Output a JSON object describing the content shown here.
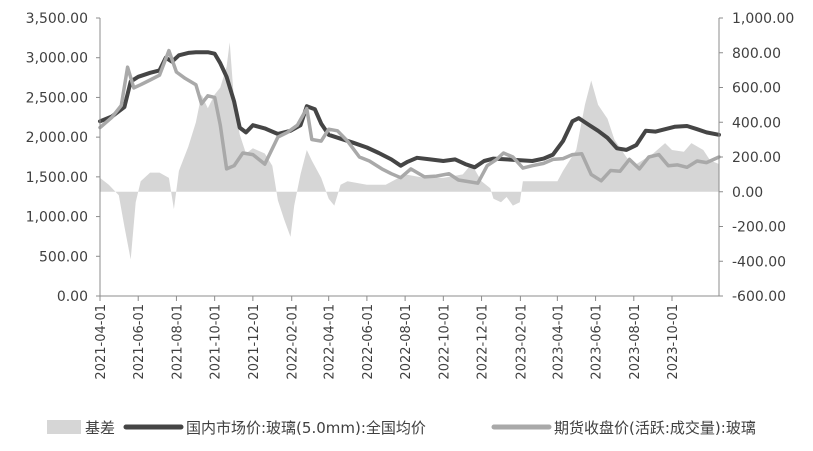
{
  "chart_data": {
    "type": "line",
    "title": "",
    "xlabel": "",
    "ylabel_left": "",
    "ylabel_right": "",
    "left_axis": {
      "min": 0,
      "max": 3500,
      "step": 500,
      "tick_labels": [
        "0.00",
        "500.00",
        "1,000.00",
        "1,500.00",
        "2,000.00",
        "2,500.00",
        "3,000.00",
        "3,500.00"
      ]
    },
    "right_axis": {
      "min": -600,
      "max": 1000,
      "step": 200,
      "tick_labels": [
        "-600.00",
        "-400.00",
        "-200.00",
        "0.00",
        "200.00",
        "400.00",
        "600.00",
        "800.00",
        "1,000.00"
      ]
    },
    "x_axis": {
      "start": "2021-04-01",
      "end": "2023-12-15",
      "tick_labels": [
        "2021-04-01",
        "2021-06-01",
        "2021-08-01",
        "2021-10-01",
        "2021-12-01",
        "2022-02-01",
        "2022-04-01",
        "2022-06-01",
        "2022-08-01",
        "2022-10-01",
        "2022-12-01",
        "2023-02-01",
        "2023-04-01",
        "2023-06-01",
        "2023-08-01",
        "2023-10-01"
      ]
    },
    "grid": false,
    "legend_position": "bottom",
    "series": [
      {
        "name": "基差",
        "axis": "right",
        "render": "area",
        "color": "#d6d6d6",
        "points": [
          [
            "2021-04-01",
            80
          ],
          [
            "2021-04-15",
            40
          ],
          [
            "2021-05-01",
            -20
          ],
          [
            "2021-05-10",
            -200
          ],
          [
            "2021-05-20",
            -390
          ],
          [
            "2021-05-28",
            -60
          ],
          [
            "2021-06-05",
            60
          ],
          [
            "2021-06-20",
            110
          ],
          [
            "2021-07-05",
            110
          ],
          [
            "2021-07-20",
            80
          ],
          [
            "2021-07-28",
            -100
          ],
          [
            "2021-08-05",
            120
          ],
          [
            "2021-08-20",
            260
          ],
          [
            "2021-09-01",
            400
          ],
          [
            "2021-09-10",
            560
          ],
          [
            "2021-09-20",
            480
          ],
          [
            "2021-10-01",
            560
          ],
          [
            "2021-10-10",
            600
          ],
          [
            "2021-10-20",
            720
          ],
          [
            "2021-10-25",
            860
          ],
          [
            "2021-11-01",
            520
          ],
          [
            "2021-11-10",
            330
          ],
          [
            "2021-11-20",
            220
          ],
          [
            "2021-12-01",
            250
          ],
          [
            "2021-12-20",
            220
          ],
          [
            "2022-01-01",
            150
          ],
          [
            "2022-01-10",
            -50
          ],
          [
            "2022-01-20",
            -160
          ],
          [
            "2022-01-30",
            -260
          ],
          [
            "2022-02-05",
            -80
          ],
          [
            "2022-02-15",
            100
          ],
          [
            "2022-02-25",
            240
          ],
          [
            "2022-03-05",
            180
          ],
          [
            "2022-03-20",
            80
          ],
          [
            "2022-04-01",
            -40
          ],
          [
            "2022-04-10",
            -80
          ],
          [
            "2022-04-20",
            40
          ],
          [
            "2022-05-01",
            60
          ],
          [
            "2022-06-01",
            40
          ],
          [
            "2022-07-01",
            40
          ],
          [
            "2022-08-01",
            100
          ],
          [
            "2022-09-01",
            80
          ],
          [
            "2022-10-01",
            80
          ],
          [
            "2022-11-01",
            100
          ],
          [
            "2022-11-15",
            160
          ],
          [
            "2022-12-01",
            60
          ],
          [
            "2022-12-15",
            20
          ],
          [
            "2022-12-20",
            -40
          ],
          [
            "2023-01-01",
            -60
          ],
          [
            "2023-01-10",
            -30
          ],
          [
            "2023-01-20",
            -80
          ],
          [
            "2023-01-31",
            -60
          ],
          [
            "2023-02-05",
            60
          ],
          [
            "2023-03-01",
            60
          ],
          [
            "2023-04-01",
            60
          ],
          [
            "2023-04-10",
            120
          ],
          [
            "2023-05-01",
            240
          ],
          [
            "2023-05-15",
            500
          ],
          [
            "2023-05-25",
            640
          ],
          [
            "2023-06-05",
            500
          ],
          [
            "2023-06-20",
            420
          ],
          [
            "2023-07-01",
            300
          ],
          [
            "2023-07-20",
            200
          ],
          [
            "2023-08-01",
            150
          ],
          [
            "2023-09-01",
            220
          ],
          [
            "2023-09-20",
            280
          ],
          [
            "2023-10-01",
            240
          ],
          [
            "2023-10-20",
            230
          ],
          [
            "2023-11-01",
            280
          ],
          [
            "2023-11-20",
            240
          ],
          [
            "2023-12-01",
            180
          ],
          [
            "2023-12-15",
            160
          ]
        ]
      },
      {
        "name": "国内市场价:玻璃(5.0mm):全国均价",
        "axis": "left",
        "render": "line",
        "color": "#454545",
        "points": [
          [
            "2021-04-01",
            2200
          ],
          [
            "2021-04-20",
            2260
          ],
          [
            "2021-05-10",
            2380
          ],
          [
            "2021-05-20",
            2700
          ],
          [
            "2021-06-01",
            2760
          ],
          [
            "2021-06-20",
            2810
          ],
          [
            "2021-07-05",
            2840
          ],
          [
            "2021-07-15",
            3000
          ],
          [
            "2021-07-25",
            2950
          ],
          [
            "2021-08-05",
            3030
          ],
          [
            "2021-08-20",
            3060
          ],
          [
            "2021-09-01",
            3070
          ],
          [
            "2021-09-20",
            3070
          ],
          [
            "2021-10-01",
            3050
          ],
          [
            "2021-10-10",
            2930
          ],
          [
            "2021-10-20",
            2760
          ],
          [
            "2021-11-01",
            2450
          ],
          [
            "2021-11-10",
            2120
          ],
          [
            "2021-11-20",
            2060
          ],
          [
            "2021-12-01",
            2150
          ],
          [
            "2021-12-20",
            2110
          ],
          [
            "2022-01-10",
            2040
          ],
          [
            "2022-01-30",
            2080
          ],
          [
            "2022-02-15",
            2150
          ],
          [
            "2022-02-25",
            2390
          ],
          [
            "2022-03-10",
            2350
          ],
          [
            "2022-03-20",
            2170
          ],
          [
            "2022-04-01",
            2030
          ],
          [
            "2022-04-20",
            1980
          ],
          [
            "2022-05-10",
            1930
          ],
          [
            "2022-06-01",
            1870
          ],
          [
            "2022-06-20",
            1800
          ],
          [
            "2022-07-10",
            1720
          ],
          [
            "2022-07-25",
            1640
          ],
          [
            "2022-08-05",
            1690
          ],
          [
            "2022-08-20",
            1740
          ],
          [
            "2022-09-10",
            1720
          ],
          [
            "2022-10-01",
            1700
          ],
          [
            "2022-10-20",
            1720
          ],
          [
            "2022-11-05",
            1660
          ],
          [
            "2022-11-20",
            1620
          ],
          [
            "2022-12-05",
            1700
          ],
          [
            "2022-12-20",
            1730
          ],
          [
            "2023-01-10",
            1720
          ],
          [
            "2023-02-01",
            1710
          ],
          [
            "2023-02-20",
            1700
          ],
          [
            "2023-03-10",
            1730
          ],
          [
            "2023-03-25",
            1780
          ],
          [
            "2023-04-10",
            1950
          ],
          [
            "2023-04-25",
            2200
          ],
          [
            "2023-05-05",
            2240
          ],
          [
            "2023-05-20",
            2160
          ],
          [
            "2023-06-05",
            2080
          ],
          [
            "2023-06-20",
            1990
          ],
          [
            "2023-07-05",
            1860
          ],
          [
            "2023-07-20",
            1840
          ],
          [
            "2023-08-05",
            1900
          ],
          [
            "2023-08-20",
            2080
          ],
          [
            "2023-09-05",
            2070
          ],
          [
            "2023-09-20",
            2100
          ],
          [
            "2023-10-05",
            2130
          ],
          [
            "2023-10-25",
            2140
          ],
          [
            "2023-11-10",
            2100
          ],
          [
            "2023-11-25",
            2060
          ],
          [
            "2023-12-15",
            2030
          ]
        ]
      },
      {
        "name": "期货收盘价(活跃:成交量):玻璃",
        "axis": "left",
        "render": "line",
        "color": "#a9a9a9",
        "points": [
          [
            "2021-04-01",
            2120
          ],
          [
            "2021-04-20",
            2250
          ],
          [
            "2021-05-05",
            2400
          ],
          [
            "2021-05-15",
            2880
          ],
          [
            "2021-05-25",
            2620
          ],
          [
            "2021-06-05",
            2660
          ],
          [
            "2021-06-20",
            2720
          ],
          [
            "2021-07-05",
            2780
          ],
          [
            "2021-07-20",
            3090
          ],
          [
            "2021-08-01",
            2820
          ],
          [
            "2021-08-15",
            2740
          ],
          [
            "2021-09-01",
            2660
          ],
          [
            "2021-09-10",
            2420
          ],
          [
            "2021-09-20",
            2520
          ],
          [
            "2021-10-01",
            2500
          ],
          [
            "2021-10-10",
            2150
          ],
          [
            "2021-10-20",
            1600
          ],
          [
            "2021-11-01",
            1640
          ],
          [
            "2021-11-15",
            1800
          ],
          [
            "2021-12-01",
            1780
          ],
          [
            "2021-12-20",
            1660
          ],
          [
            "2022-01-10",
            2000
          ],
          [
            "2022-01-25",
            2060
          ],
          [
            "2022-02-10",
            2150
          ],
          [
            "2022-02-25",
            2360
          ],
          [
            "2022-03-05",
            1970
          ],
          [
            "2022-03-20",
            1950
          ],
          [
            "2022-04-01",
            2100
          ],
          [
            "2022-04-15",
            2080
          ],
          [
            "2022-05-01",
            1950
          ],
          [
            "2022-05-20",
            1750
          ],
          [
            "2022-06-05",
            1700
          ],
          [
            "2022-06-25",
            1600
          ],
          [
            "2022-07-10",
            1540
          ],
          [
            "2022-07-25",
            1490
          ],
          [
            "2022-08-10",
            1600
          ],
          [
            "2022-09-01",
            1500
          ],
          [
            "2022-09-20",
            1510
          ],
          [
            "2022-10-10",
            1540
          ],
          [
            "2022-10-25",
            1460
          ],
          [
            "2022-11-10",
            1440
          ],
          [
            "2022-11-25",
            1420
          ],
          [
            "2022-12-10",
            1640
          ],
          [
            "2022-12-25",
            1720
          ],
          [
            "2023-01-05",
            1800
          ],
          [
            "2023-01-20",
            1750
          ],
          [
            "2023-02-05",
            1610
          ],
          [
            "2023-02-20",
            1640
          ],
          [
            "2023-03-10",
            1670
          ],
          [
            "2023-03-25",
            1720
          ],
          [
            "2023-04-10",
            1730
          ],
          [
            "2023-04-25",
            1780
          ],
          [
            "2023-05-10",
            1790
          ],
          [
            "2023-05-25",
            1530
          ],
          [
            "2023-06-10",
            1450
          ],
          [
            "2023-06-25",
            1580
          ],
          [
            "2023-07-10",
            1570
          ],
          [
            "2023-07-25",
            1720
          ],
          [
            "2023-08-10",
            1600
          ],
          [
            "2023-08-25",
            1750
          ],
          [
            "2023-09-10",
            1780
          ],
          [
            "2023-09-25",
            1640
          ],
          [
            "2023-10-10",
            1650
          ],
          [
            "2023-10-25",
            1620
          ],
          [
            "2023-11-10",
            1700
          ],
          [
            "2023-11-25",
            1680
          ],
          [
            "2023-12-15",
            1750
          ]
        ]
      }
    ]
  }
}
